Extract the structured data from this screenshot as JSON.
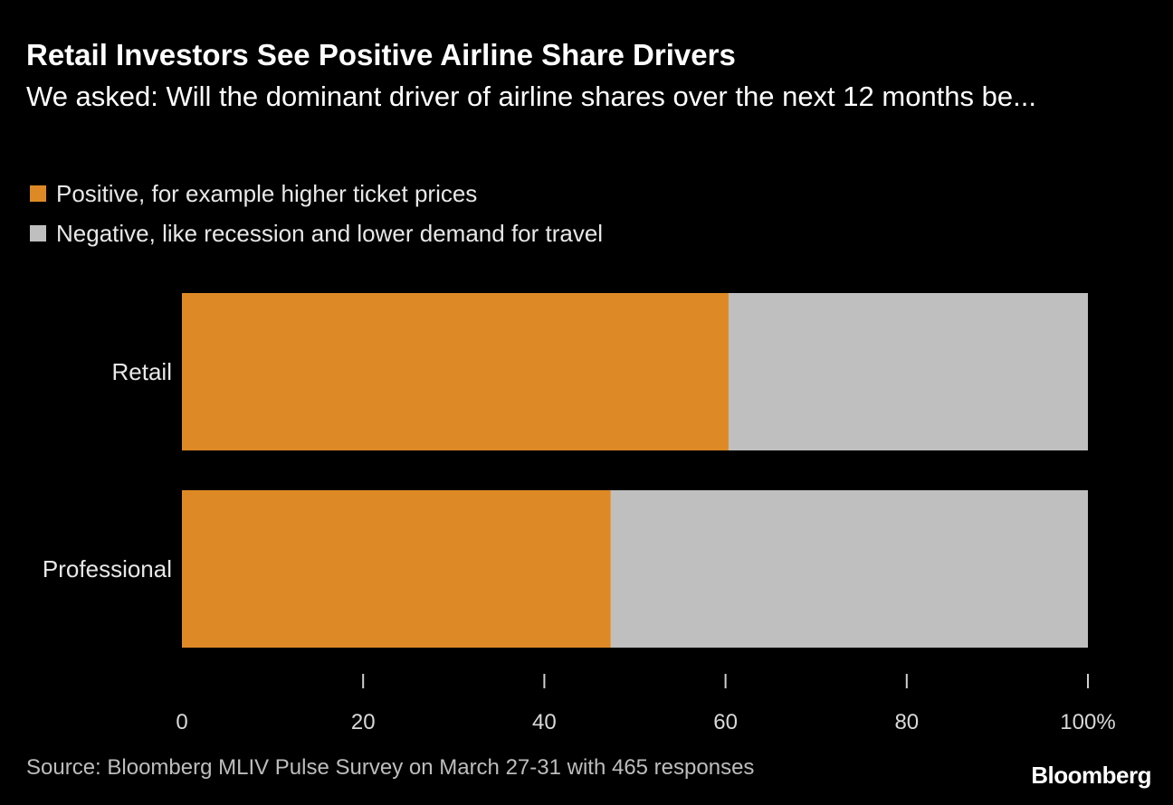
{
  "chart_data": {
    "type": "bar",
    "orientation": "horizontal",
    "stacked": true,
    "title": "Retail Investors See Positive Airline Share Drivers",
    "subtitle": "We asked: Will the dominant driver of airline shares over the next 12 months be...",
    "categories": [
      "Retail",
      "Professional"
    ],
    "series": [
      {
        "name": "Positive, for example higher ticket prices",
        "color": "#dd8a26",
        "values": [
          60.3,
          47.3
        ]
      },
      {
        "name": "Negative, like recession and lower demand for travel",
        "color": "#bfbfbf",
        "values": [
          39.7,
          52.7
        ]
      }
    ],
    "xlim": [
      0,
      100
    ],
    "xticks": [
      0,
      20,
      40,
      60,
      80,
      100
    ],
    "xtick_labels": [
      "0",
      "20",
      "40",
      "60",
      "80",
      "100%"
    ],
    "xlabel": "",
    "ylabel": "",
    "legend": "top-left",
    "grid": false
  },
  "source": "Source: Bloomberg MLIV Pulse Survey on March 27-31 with 465 responses",
  "brand": "Bloomberg"
}
